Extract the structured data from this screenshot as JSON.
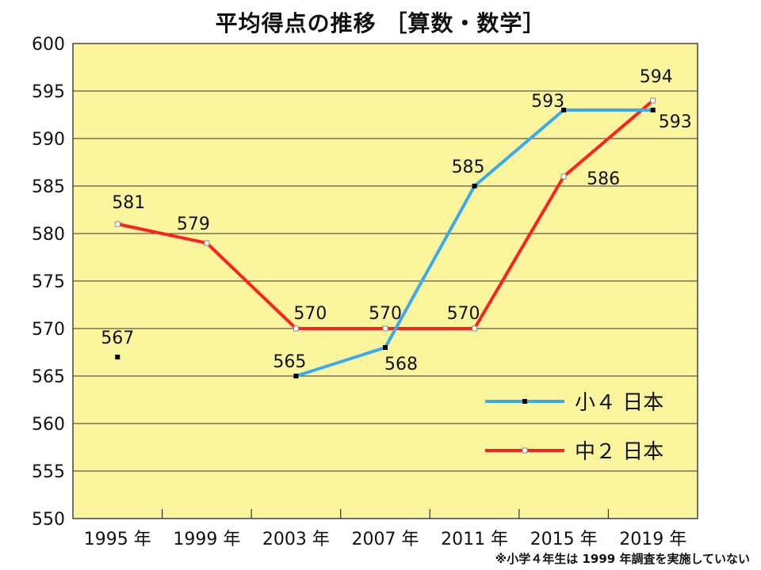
{
  "chart_data": {
    "type": "line",
    "title": "平均得点の推移 ［算数・数学］",
    "categories": [
      "1995 年",
      "1999 年",
      "2003 年",
      "2007 年",
      "2011 年",
      "2015 年",
      "2019 年"
    ],
    "ylim": [
      550,
      600
    ],
    "yticks": [
      550,
      555,
      560,
      565,
      570,
      575,
      580,
      585,
      590,
      595,
      600
    ],
    "grid": true,
    "legend_position": "bottom-right",
    "series": [
      {
        "name": "小４ 日本",
        "color": "#3aaaee",
        "values": [
          567,
          null,
          565,
          568,
          585,
          593,
          593
        ],
        "labels": [
          "567",
          "",
          "565",
          "568",
          "585",
          "593",
          "593"
        ]
      },
      {
        "name": "中２ 日本",
        "color": "#ff2020",
        "values": [
          581,
          579,
          570,
          570,
          570,
          586,
          594
        ],
        "labels": [
          "581",
          "579",
          "570",
          "570",
          "570",
          "586",
          "594"
        ]
      }
    ],
    "plot_background": "#fbf59e",
    "note": "※小学４年生は 1999 年調査を実施していない"
  }
}
